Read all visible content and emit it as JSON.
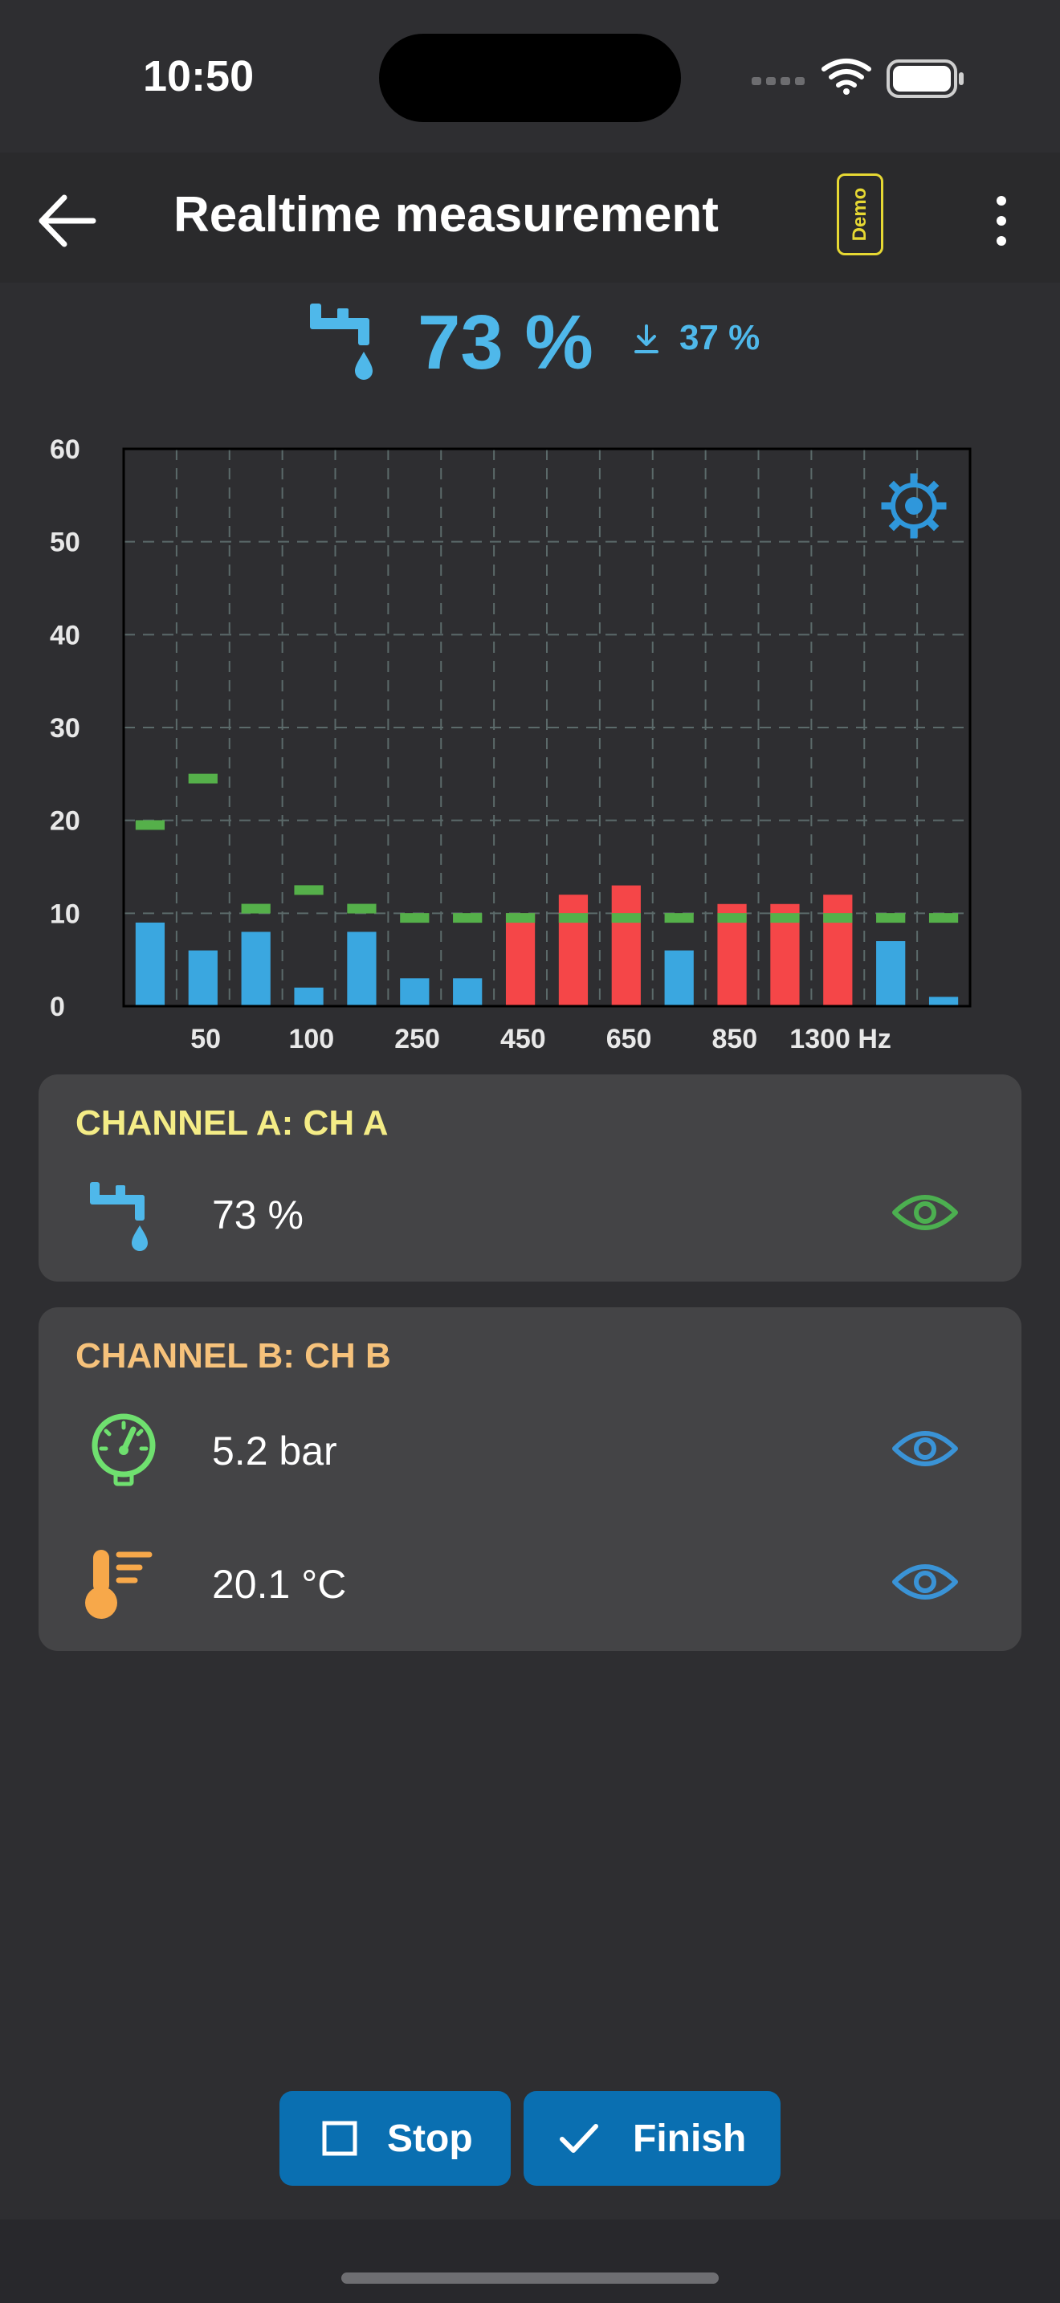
{
  "status_bar": {
    "time": "10:50"
  },
  "appbar": {
    "title": "Realtime measurement",
    "demo_badge": "Demo"
  },
  "summary": {
    "flow_value": "73 %",
    "min_value": "37 %",
    "accent": "#4fb8ea"
  },
  "chart_data": {
    "type": "bar",
    "ylim": [
      0,
      60
    ],
    "y_ticks": [
      "0",
      "10",
      "20",
      "30",
      "40",
      "50",
      "60"
    ],
    "x_tick_labels": [
      "50",
      "100",
      "250",
      "450",
      "650",
      "850",
      "1300 Hz"
    ],
    "grid": true,
    "series": [
      {
        "values": [
          9,
          6,
          8,
          2,
          8,
          3,
          3,
          10,
          12,
          13,
          6,
          11,
          11,
          12,
          7,
          1
        ]
      }
    ],
    "limits": [
      19.5,
      24.5,
      10.5,
      12.5,
      10.5,
      9.5,
      9.5,
      9.5,
      9.5,
      9.5,
      9.5,
      9.5,
      9.5,
      9.5,
      9.5,
      9.5
    ],
    "colors": {
      "normal": "#3aa7e0",
      "exceed": "#f54648",
      "limit": "#55b04a",
      "grid": "#5b6a6a"
    }
  },
  "channel_a": {
    "title": "CHANNEL A: CH A",
    "rows": [
      {
        "icon": "faucet-icon",
        "value": "73 %",
        "eye_color": "#4caf50"
      }
    ]
  },
  "channel_b": {
    "title": "CHANNEL B: CH B",
    "rows": [
      {
        "icon": "pressure-gauge-icon",
        "value": "5.2 bar",
        "eye_color": "#3a93d6"
      },
      {
        "icon": "thermometer-icon",
        "value": "20.1 °C",
        "eye_color": "#3a93d6"
      }
    ]
  },
  "actions": {
    "stop_label": "Stop",
    "finish_label": "Finish"
  }
}
